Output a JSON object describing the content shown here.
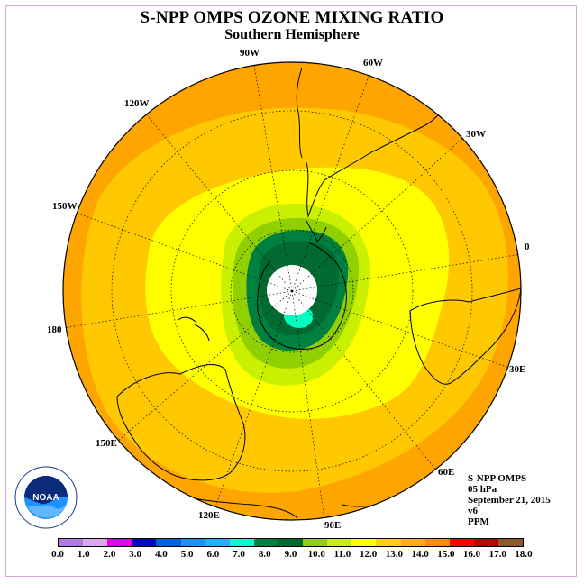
{
  "title": "S-NPP OMPS OZONE MIXING RATIO",
  "subtitle": "Southern Hemisphere",
  "longitude_labels": {
    "lon_90w": "90W",
    "lon_60w": "60W",
    "lon_30w": "30W",
    "lon_0": "0",
    "lon_30e": "30E",
    "lon_60e": "60E",
    "lon_90e": "90E",
    "lon_120e": "120E",
    "lon_150e": "150E",
    "lon_180": "180",
    "lon_150w": "150W",
    "lon_120w": "120W"
  },
  "info": {
    "instrument": "S-NPP OMPS",
    "level": "05 hPa",
    "date": "September 21, 2015",
    "version": "v6",
    "units": "PPM"
  },
  "logo": {
    "text": "NOAA"
  },
  "colorbar": {
    "ticks": [
      "0.0",
      "1.0",
      "2.0",
      "3.0",
      "4.0",
      "5.0",
      "6.0",
      "7.0",
      "8.0",
      "9.0",
      "10.0",
      "11.0",
      "12.0",
      "13.0",
      "14.0",
      "15.0",
      "16.0",
      "17.0",
      "18.0"
    ],
    "colors": [
      "#b57ae0",
      "#dba8f0",
      "#e800e8",
      "#0000e0",
      "#0060e0",
      "#1e90ff",
      "#20b0f8",
      "#00ffd0",
      "#008040",
      "#006a30",
      "#90d000",
      "#c8f000",
      "#ffff00",
      "#ffd000",
      "#ffb000",
      "#ff8c00",
      "#ff0000",
      "#c00000",
      "#8b5a2b"
    ]
  },
  "map_colors": {
    "band_outer": "#ffa500",
    "band_mid": "#ffc800",
    "band_inner": "#ffff00",
    "band_light_green": "#c8f000",
    "band_green": "#90d000",
    "band_dark_green": "#008040",
    "band_darker_green": "#006a30",
    "band_aqua": "#00ffc0",
    "pole_missing": "#ffffff"
  }
}
